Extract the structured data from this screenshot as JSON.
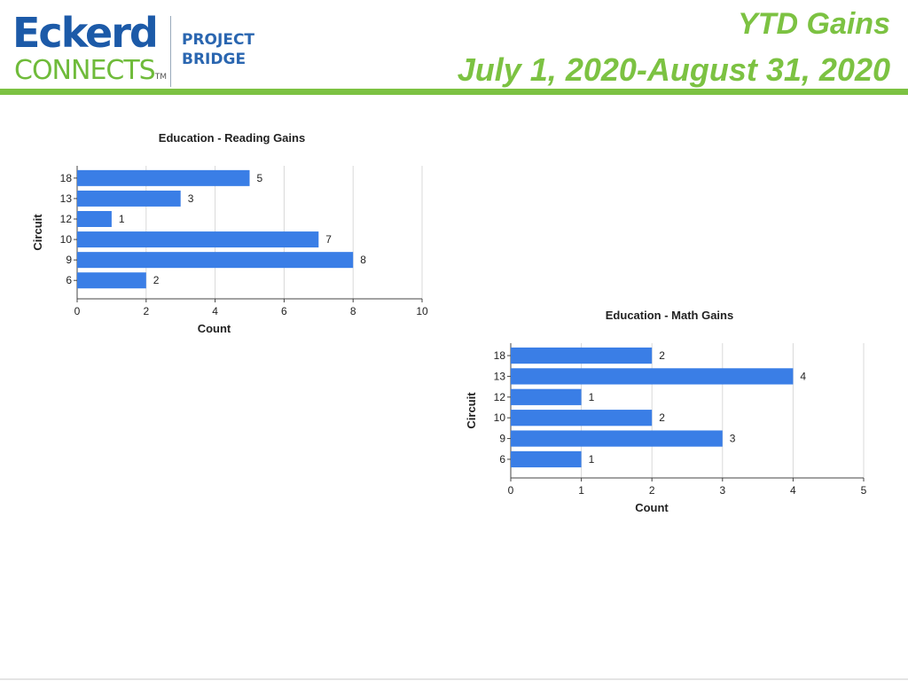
{
  "header": {
    "logo_line1": "Eckerd",
    "logo_line2": "CONNECTS",
    "logo_tm": "TM",
    "logo_project_1": "PROJECT",
    "logo_project_2": "BRIDGE",
    "title": "YTD Gains",
    "subtitle": "July 1, 2020-August 31, 2020"
  },
  "colors": {
    "bar": "#3a7ee6",
    "accent_green": "#7cc242",
    "brand_blue": "#1c5aa8",
    "grid": "#d9d9d9",
    "axis": "#444444"
  },
  "chart_data": [
    {
      "type": "bar",
      "orientation": "horizontal",
      "title": "Education - Reading Gains",
      "xlabel": "Count",
      "ylabel": "Circuit",
      "categories": [
        "18",
        "13",
        "12",
        "10",
        "9",
        "6"
      ],
      "values": [
        5,
        3,
        1,
        7,
        8,
        2
      ],
      "xlim": [
        0,
        10
      ],
      "xticks": [
        0,
        2,
        4,
        6,
        8,
        10
      ],
      "grid": "vertical",
      "data_labels": true
    },
    {
      "type": "bar",
      "orientation": "horizontal",
      "title": "Education - Math Gains",
      "xlabel": "Count",
      "ylabel": "Circuit",
      "categories": [
        "18",
        "13",
        "12",
        "10",
        "9",
        "6"
      ],
      "values": [
        2,
        4,
        1,
        2,
        3,
        1
      ],
      "xlim": [
        0,
        5
      ],
      "xticks": [
        0,
        1,
        2,
        3,
        4,
        5
      ],
      "grid": "vertical",
      "data_labels": true
    }
  ]
}
